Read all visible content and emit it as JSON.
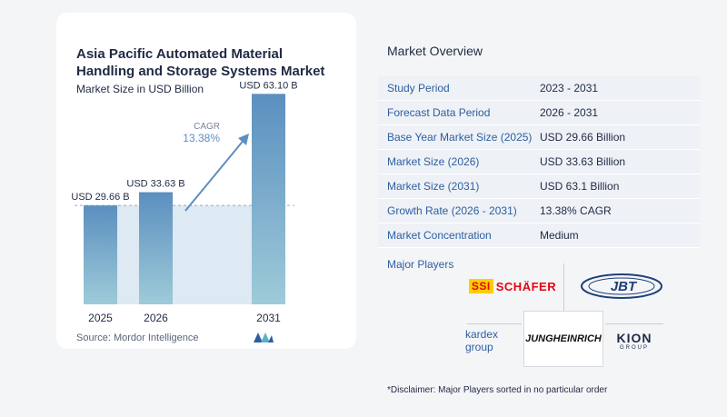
{
  "chart_data": {
    "type": "bar",
    "title": "Asia Pacific Automated Material Handling and Storage Systems Market",
    "subtitle": "Market Size in USD Billion",
    "categories": [
      "2025",
      "2026",
      "2031"
    ],
    "values": [
      29.66,
      33.63,
      63.1
    ],
    "data_labels": [
      "USD 29.66 B",
      "USD 33.63 B",
      "USD 63.10 B"
    ],
    "cagr_label": "CAGR",
    "cagr_value": "13.38%",
    "ylim": [
      0,
      70
    ],
    "grid": false,
    "source": "Source:  Mordor Intelligence"
  },
  "overview": {
    "title": "Market Overview",
    "rows": [
      {
        "key": "Study Period",
        "value": "2023 - 2031"
      },
      {
        "key": "Forecast Data Period",
        "value": "2026 - 2031"
      },
      {
        "key": "Base Year Market Size (2025)",
        "value": "USD 29.66 Billion"
      },
      {
        "key": "Market Size (2026)",
        "value": "USD 33.63 Billion"
      },
      {
        "key": "Market Size (2031)",
        "value": "USD 63.1 Billion"
      },
      {
        "key": "Growth Rate (2026 - 2031)",
        "value": "13.38% CAGR"
      },
      {
        "key": "Market Concentration",
        "value": "Medium"
      }
    ],
    "players_label": "Major Players",
    "players": {
      "ssi": "SSI SCHÄFER",
      "ssi_box": "SSI",
      "ssi_text": "SCHÄFER",
      "jbt": "JBT",
      "kardex": "kardex group",
      "jungheinrich": "JUNGHEINRICH",
      "kion": "KION",
      "kion_sub": "GROUP"
    },
    "disclaimer": "*Disclaimer: Major Players sorted in no particular order"
  },
  "colors": {
    "bar_top": "#5b8fbf",
    "bar_bottom": "#9ecbd9",
    "band": "#dde9f3",
    "arrow": "#5b8fbf",
    "cagr": "#5b8fbf"
  }
}
